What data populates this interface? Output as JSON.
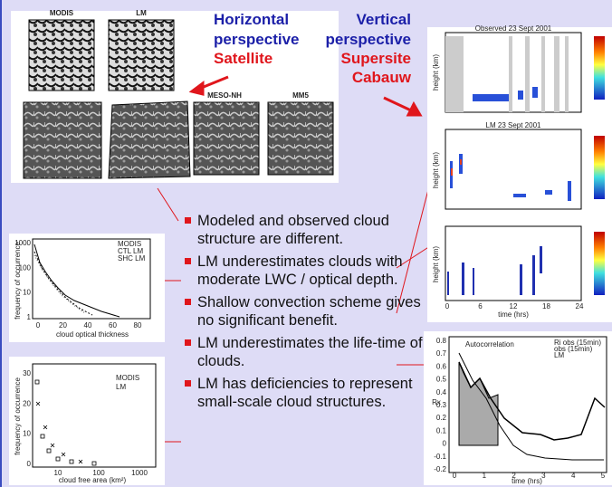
{
  "left_heading": {
    "line1": "Horizontal",
    "line2": "perspective",
    "line3": "Satellite"
  },
  "right_heading": {
    "line1": "Vertical",
    "line2": "perspective",
    "line3": "Supersite",
    "line4": "Cabauw"
  },
  "satellite_panels": [
    "MODIS",
    "LM",
    "MESO-NH",
    "MM5"
  ],
  "bullets": [
    "Modeled and observed cloud structure are different.",
    "LM underestimates clouds with moderate LWC / optical depth.",
    "Shallow convection scheme gives no significant benefit.",
    "LM underestimates the life-time of clouds.",
    "LM has deficiencies to represent small-scale cloud structures."
  ],
  "histogram_plot": {
    "ylabel": "frequency of occurrence",
    "xlabel": "cloud optical thickness",
    "legend": [
      "MODIS",
      "CTL LM",
      "SHC LM"
    ],
    "yticks": [
      1000,
      100,
      10,
      1
    ],
    "xticks": [
      0,
      20,
      40,
      60,
      80
    ]
  },
  "scatter_plot": {
    "ylabel": "frequency of occurrence",
    "xlabel": "cloud free area (km²)",
    "legend": [
      "MODIS",
      "LM"
    ],
    "yticks": [
      30,
      20,
      10,
      0
    ],
    "xticks": [
      10,
      100,
      1000
    ]
  },
  "radar_panels": {
    "titles": [
      "Observed 23 Sept 2001",
      "LM 23 Sept 2001"
    ],
    "ylabel": "height (km)",
    "xlabel": "time (hrs)",
    "xticks": [
      0,
      6,
      12,
      18,
      24
    ]
  },
  "autocorrelation_plot": {
    "annotation": "Autocorrelation",
    "legend": [
      "Ri obs (15min)",
      "obs (15min)",
      "LM"
    ],
    "ylabel": "Rx",
    "xlabel": "time (hrs)",
    "yticks": [
      0.8,
      0.7,
      0.6,
      0.5,
      0.4,
      0.3,
      0.2,
      0.1,
      0,
      -0.1,
      -0.2
    ],
    "xticks": [
      0,
      1,
      2,
      3,
      4,
      5
    ]
  }
}
